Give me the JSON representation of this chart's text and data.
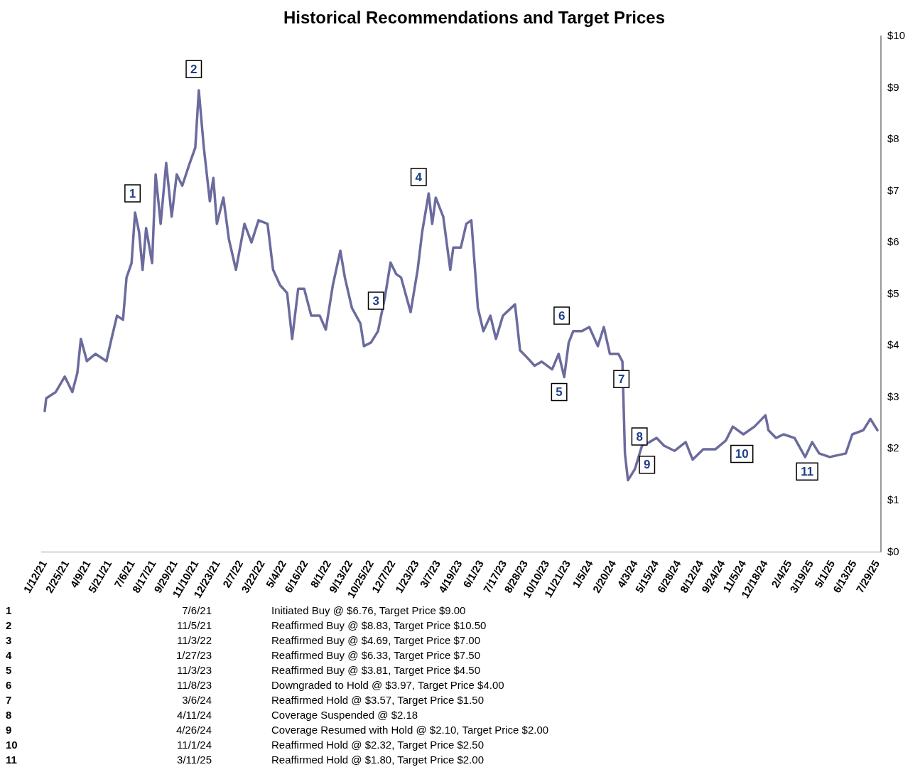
{
  "chart_data": {
    "type": "line",
    "title": "Historical Recommendations and Target Prices",
    "x": [
      "2021-01-12",
      "2021-01-15",
      "2021-02-03",
      "2021-02-21",
      "2021-03-08",
      "2021-03-18",
      "2021-03-25",
      "2021-04-06",
      "2021-04-23",
      "2021-05-15",
      "2021-05-25",
      "2021-06-05",
      "2021-06-17",
      "2021-06-24",
      "2021-07-04",
      "2021-07-11",
      "2021-07-19",
      "2021-07-26",
      "2021-08-02",
      "2021-08-14",
      "2021-08-21",
      "2021-08-31",
      "2021-09-11",
      "2021-09-22",
      "2021-10-02",
      "2021-10-13",
      "2021-10-28",
      "2021-11-08",
      "2021-11-15",
      "2021-11-25",
      "2021-12-07",
      "2021-12-14",
      "2021-12-21",
      "2022-01-03",
      "2022-01-14",
      "2022-01-28",
      "2022-02-14",
      "2022-02-28",
      "2022-03-14",
      "2022-04-01",
      "2022-04-12",
      "2022-04-26",
      "2022-05-10",
      "2022-05-20",
      "2022-06-01",
      "2022-06-13",
      "2022-06-27",
      "2022-07-14",
      "2022-07-26",
      "2022-08-09",
      "2022-08-24",
      "2022-09-02",
      "2022-09-16",
      "2022-10-03",
      "2022-10-10",
      "2022-10-24",
      "2022-11-07",
      "2022-11-21",
      "2022-12-02",
      "2022-12-13",
      "2022-12-23",
      "2023-01-11",
      "2023-01-25",
      "2023-02-03",
      "2023-02-16",
      "2023-02-23",
      "2023-03-02",
      "2023-03-17",
      "2023-03-31",
      "2023-04-06",
      "2023-04-21",
      "2023-05-02",
      "2023-05-12",
      "2023-05-25",
      "2023-06-05",
      "2023-06-19",
      "2023-06-30",
      "2023-07-14",
      "2023-08-07",
      "2023-08-17",
      "2023-09-01",
      "2023-09-15",
      "2023-09-29",
      "2023-10-20",
      "2023-11-02",
      "2023-11-13",
      "2023-11-22",
      "2023-12-01",
      "2023-12-18",
      "2024-01-02",
      "2024-01-19",
      "2024-01-31",
      "2024-02-12",
      "2024-02-29",
      "2024-03-08",
      "2024-03-13",
      "2024-03-19",
      "2024-04-02",
      "2024-04-16",
      "2024-05-01",
      "2024-05-15",
      "2024-05-30",
      "2024-06-20",
      "2024-07-12",
      "2024-07-26",
      "2024-08-16",
      "2024-09-09",
      "2024-09-30",
      "2024-10-14",
      "2024-11-04",
      "2024-11-26",
      "2024-12-18",
      "2024-12-24",
      "2025-01-08",
      "2025-01-23",
      "2025-02-14",
      "2025-03-07",
      "2025-03-21",
      "2025-04-04",
      "2025-04-25",
      "2025-05-27",
      "2025-06-09",
      "2025-07-01",
      "2025-07-15",
      "2025-07-29"
    ],
    "series": [
      {
        "color": "#6b6b9e",
        "values": [
          2.73,
          2.98,
          3.1,
          3.4,
          3.1,
          3.47,
          4.13,
          3.7,
          3.84,
          3.7,
          4.13,
          4.58,
          4.5,
          5.32,
          5.6,
          6.58,
          6.2,
          5.47,
          6.28,
          5.6,
          7.32,
          6.36,
          7.54,
          6.5,
          7.32,
          7.1,
          7.54,
          7.84,
          8.95,
          7.84,
          6.8,
          7.25,
          6.36,
          6.87,
          6.06,
          5.47,
          6.36,
          6.0,
          6.43,
          6.36,
          5.47,
          5.17,
          5.02,
          4.13,
          5.1,
          5.1,
          4.58,
          4.58,
          4.31,
          5.17,
          5.84,
          5.32,
          4.73,
          4.43,
          3.99,
          4.06,
          4.28,
          4.95,
          5.61,
          5.39,
          5.32,
          4.65,
          5.47,
          6.2,
          6.95,
          6.36,
          6.87,
          6.5,
          5.47,
          5.9,
          5.9,
          6.36,
          6.43,
          4.73,
          4.28,
          4.58,
          4.13,
          4.58,
          4.8,
          3.91,
          3.76,
          3.61,
          3.69,
          3.54,
          3.84,
          3.39,
          4.06,
          4.28,
          4.28,
          4.36,
          3.99,
          4.36,
          3.84,
          3.84,
          3.69,
          1.91,
          1.39,
          1.61,
          2.06,
          2.13,
          2.21,
          2.06,
          1.96,
          2.13,
          1.79,
          1.99,
          1.99,
          2.16,
          2.43,
          2.28,
          2.43,
          2.65,
          2.36,
          2.21,
          2.28,
          2.21,
          1.84,
          2.13,
          1.91,
          1.84,
          1.91,
          2.28,
          2.36,
          2.58,
          2.36
        ]
      }
    ],
    "xlim": [
      "2021-01-05",
      "2025-08-05"
    ],
    "xticks": [
      {
        "value": "2021-01-12",
        "label": "1/12/21"
      },
      {
        "value": "2021-02-25",
        "label": "2/25/21"
      },
      {
        "value": "2021-04-09",
        "label": "4/9/21"
      },
      {
        "value": "2021-05-21",
        "label": "5/21/21"
      },
      {
        "value": "2021-07-06",
        "label": "7/6/21"
      },
      {
        "value": "2021-08-17",
        "label": "8/17/21"
      },
      {
        "value": "2021-09-29",
        "label": "9/29/21"
      },
      {
        "value": "2021-11-10",
        "label": "11/10/21"
      },
      {
        "value": "2021-12-23",
        "label": "12/23/21"
      },
      {
        "value": "2022-02-07",
        "label": "2/7/22"
      },
      {
        "value": "2022-03-22",
        "label": "3/22/22"
      },
      {
        "value": "2022-05-04",
        "label": "5/4/22"
      },
      {
        "value": "2022-06-16",
        "label": "6/16/22"
      },
      {
        "value": "2022-08-01",
        "label": "8/1/22"
      },
      {
        "value": "2022-09-13",
        "label": "9/13/22"
      },
      {
        "value": "2022-10-25",
        "label": "10/25/22"
      },
      {
        "value": "2022-12-07",
        "label": "12/7/22"
      },
      {
        "value": "2023-01-23",
        "label": "1/23/23"
      },
      {
        "value": "2023-03-07",
        "label": "3/7/23"
      },
      {
        "value": "2023-04-19",
        "label": "4/19/23"
      },
      {
        "value": "2023-06-01",
        "label": "6/1/23"
      },
      {
        "value": "2023-07-17",
        "label": "7/17/23"
      },
      {
        "value": "2023-08-28",
        "label": "8/28/23"
      },
      {
        "value": "2023-10-10",
        "label": "10/10/23"
      },
      {
        "value": "2023-11-21",
        "label": "11/21/23"
      },
      {
        "value": "2024-01-05",
        "label": "1/5/24"
      },
      {
        "value": "2024-02-20",
        "label": "2/20/24"
      },
      {
        "value": "2024-04-03",
        "label": "4/3/24"
      },
      {
        "value": "2024-05-15",
        "label": "5/15/24"
      },
      {
        "value": "2024-06-28",
        "label": "6/28/24"
      },
      {
        "value": "2024-08-12",
        "label": "8/12/24"
      },
      {
        "value": "2024-09-24",
        "label": "9/24/24"
      },
      {
        "value": "2024-11-05",
        "label": "11/5/24"
      },
      {
        "value": "2024-12-18",
        "label": "12/18/24"
      },
      {
        "value": "2025-02-04",
        "label": "2/4/25"
      },
      {
        "value": "2025-03-19",
        "label": "3/19/25"
      },
      {
        "value": "2025-05-01",
        "label": "5/1/25"
      },
      {
        "value": "2025-06-13",
        "label": "6/13/25"
      },
      {
        "value": "2025-07-29",
        "label": "7/29/25"
      }
    ],
    "ylim": [
      0,
      10
    ],
    "yticks": [
      {
        "value": 0,
        "label": "$0"
      },
      {
        "value": 1,
        "label": "$1"
      },
      {
        "value": 2,
        "label": "$2"
      },
      {
        "value": 3,
        "label": "$3"
      },
      {
        "value": 4,
        "label": "$4"
      },
      {
        "value": 5,
        "label": "$5"
      },
      {
        "value": 6,
        "label": "$6"
      },
      {
        "value": 7,
        "label": "$7"
      },
      {
        "value": 8,
        "label": "$8"
      },
      {
        "value": 9,
        "label": "$9"
      },
      {
        "value": 10,
        "label": "$10"
      }
    ],
    "grid": false,
    "legend": false,
    "marker": "none",
    "line_style": "solid",
    "annotations": [
      {
        "text": "1",
        "x": "2021-07-06",
        "y": 6.95
      },
      {
        "text": "2",
        "x": "2021-11-05",
        "y": 9.36
      },
      {
        "text": "3",
        "x": "2022-11-03",
        "y": 4.87
      },
      {
        "text": "4",
        "x": "2023-01-27",
        "y": 7.27
      },
      {
        "text": "5",
        "x": "2023-11-03",
        "y": 3.1
      },
      {
        "text": "6",
        "x": "2023-11-08",
        "y": 4.58
      },
      {
        "text": "7",
        "x": "2024-03-06",
        "y": 3.35
      },
      {
        "text": "8",
        "x": "2024-04-11",
        "y": 2.24
      },
      {
        "text": "9",
        "x": "2024-04-26",
        "y": 1.69
      },
      {
        "text": "10",
        "x": "2024-11-01",
        "y": 1.9
      },
      {
        "text": "11",
        "x": "2025-03-11",
        "y": 1.56
      },
      "1",
      "7/6/21",
      "Initiated Buy @ $6.76, Target Price $9.00",
      "2",
      "11/5/21",
      "Reaffirmed Buy @ $8.83, Target Price $10.50",
      "3",
      "11/3/22",
      "Reaffirmed Buy @ $4.69, Target Price $7.00",
      "4",
      "1/27/23",
      "Reaffirmed Buy @ $6.33, Target Price $7.50",
      "5",
      "11/3/23",
      "Reaffirmed Buy @ $3.81, Target Price $4.50",
      "6",
      "11/8/23",
      "Downgraded to Hold @ $3.97, Target Price $4.00",
      "7",
      "3/6/24",
      "Reaffirmed Hold @ $3.57, Target Price $1.50",
      "8",
      "4/11/24",
      "Coverage Suspended @ $2.18",
      "9",
      "4/26/24",
      "Coverage Resumed with Hold @ $2.10, Target Price $2.00",
      "10",
      "11/1/24",
      "Reaffirmed Hold @ $2.32, Target Price $2.50",
      "11",
      "3/11/25",
      "Reaffirmed Hold @ $1.80, Target Price $2.00"
    ]
  }
}
